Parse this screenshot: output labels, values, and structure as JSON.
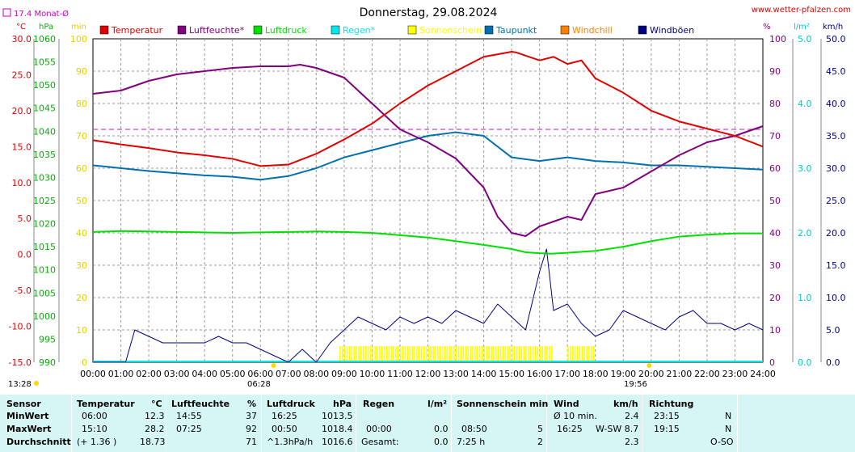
{
  "title": "Donnerstag, 29.08.2024",
  "site": "www.wetter-pfalzen.com",
  "month_avg": "17.4 Monat-Ø",
  "unit_labels": {
    "celsius": "°C",
    "hpa": "hPa",
    "min": "min",
    "percent": "%",
    "rain": "l/m²",
    "speed": "km/h"
  },
  "sun_times": {
    "rise": "06:28",
    "set": "19:56",
    "moonset": "13:28"
  },
  "legend": [
    {
      "label": "Temperatur",
      "color": "#e00000"
    },
    {
      "label": "Luftfeuchte*",
      "color": "#800080"
    },
    {
      "label": "Luftdruck",
      "color": "#00e000"
    },
    {
      "label": "Regen*",
      "color": "#00e8e8"
    },
    {
      "label": "Sonnenschein",
      "color": "#ffff00"
    },
    {
      "label": "Taupunkt",
      "color": "#0070b0"
    },
    {
      "label": "Windchill",
      "color": "#ff8000"
    },
    {
      "label": "Windböen",
      "color": "#000080"
    }
  ],
  "axes": {
    "temp": {
      "labels": [
        "30.0",
        "25.0",
        "20.0",
        "15.0",
        "10.0",
        "5.0",
        "0.0",
        "-5.0",
        "-10.0",
        "-15.0"
      ],
      "color": "#e00000"
    },
    "pressure": {
      "labels": [
        "1060",
        "1055",
        "1050",
        "1045",
        "1040",
        "1035",
        "1030",
        "1025",
        "1020",
        "1015",
        "1010",
        "1005",
        "1000",
        "995",
        "990"
      ],
      "color": "#00b000"
    },
    "minutes": {
      "labels": [
        "100",
        "90",
        "80",
        "70",
        "60",
        "50",
        "40",
        "30",
        "20",
        "10",
        "0"
      ],
      "color": "#e0d000"
    },
    "percent": {
      "labels": [
        "100",
        "90",
        "80",
        "70",
        "60",
        "50",
        "40",
        "30",
        "20",
        "10",
        "0"
      ],
      "color": "#800080"
    },
    "rain": {
      "labels": [
        "5.0",
        "4.0",
        "3.0",
        "2.0",
        "1.0",
        "0.0"
      ],
      "color": "#00c8c8"
    },
    "wind": {
      "labels": [
        "50.0",
        "45.0",
        "40.0",
        "35.0",
        "30.0",
        "25.0",
        "20.0",
        "15.0",
        "10.0",
        "5.0",
        "0.0"
      ],
      "color": "#000080"
    },
    "x_labels": [
      "00:00",
      "01:00",
      "02:00",
      "03:00",
      "04:00",
      "05:00",
      "06:00",
      "07:00",
      "08:00",
      "09:00",
      "10:00",
      "11:00",
      "12:00",
      "13:00",
      "14:00",
      "15:00",
      "16:00",
      "17:00",
      "18:00",
      "19:00",
      "20:00",
      "21:00",
      "22:00",
      "23:00",
      "24:00"
    ]
  },
  "chart_data": {
    "type": "line",
    "title": "Donnerstag, 29.08.2024",
    "x_unit": "hour",
    "month_average_temperature": 17.4,
    "series": [
      {
        "name": "Temperatur",
        "unit": "°C",
        "x": [
          0,
          1,
          2,
          3,
          4,
          5,
          6,
          7,
          8,
          9,
          10,
          11,
          12,
          13,
          14,
          15,
          15.17,
          16,
          16.5,
          17,
          17.5,
          18,
          19,
          20,
          21,
          22,
          23,
          24
        ],
        "values": [
          15.9,
          15.3,
          14.8,
          14.2,
          13.8,
          13.3,
          12.3,
          12.5,
          14,
          16,
          18.2,
          21,
          23.5,
          25.5,
          27.5,
          28.2,
          28.1,
          27,
          27.5,
          26.5,
          27,
          24.5,
          22.5,
          20,
          18.5,
          17.5,
          16.5,
          15
        ]
      },
      {
        "name": "Luftfeuchte*",
        "unit": "%",
        "x": [
          0,
          1,
          2,
          3,
          4,
          5,
          6,
          7,
          7.42,
          8,
          9,
          10,
          11,
          12,
          13,
          14,
          14.5,
          15,
          15.5,
          16,
          17,
          17.5,
          18,
          19,
          20,
          21,
          22,
          23,
          24
        ],
        "values": [
          83,
          84,
          87,
          89,
          90,
          91,
          91.5,
          91.5,
          92,
          91,
          88,
          80,
          72,
          68,
          63,
          54,
          45,
          40,
          39,
          42,
          45,
          44,
          52,
          54,
          59,
          64,
          68,
          70,
          73
        ]
      },
      {
        "name": "Luftdruck",
        "unit": "hPa",
        "x": [
          0,
          1,
          2,
          3,
          4,
          5,
          6,
          7,
          8,
          9,
          10,
          11,
          12,
          13,
          14,
          15,
          15.5,
          16,
          16.42,
          17,
          18,
          19,
          20,
          21,
          22,
          23,
          24
        ],
        "values": [
          1018.2,
          1018.4,
          1018.3,
          1018.2,
          1018.1,
          1018.0,
          1018.1,
          1018.2,
          1018.3,
          1018.2,
          1018.0,
          1017.5,
          1017.0,
          1016.2,
          1015.4,
          1014.5,
          1013.8,
          1013.6,
          1013.5,
          1013.7,
          1014.1,
          1015.0,
          1016.2,
          1017.2,
          1017.6,
          1017.9,
          1017.9
        ]
      },
      {
        "name": "Taupunkt",
        "unit": "°C",
        "x": [
          0,
          1,
          2,
          3,
          4,
          5,
          6,
          7,
          8,
          9,
          10,
          11,
          12,
          13,
          14,
          15,
          16,
          17,
          18,
          19,
          20,
          21,
          22,
          23,
          24
        ],
        "values": [
          12.4,
          12.0,
          11.6,
          11.3,
          11.0,
          10.8,
          10.4,
          10.9,
          12.0,
          13.5,
          14.5,
          15.5,
          16.5,
          17,
          16.5,
          13.5,
          13,
          13.5,
          13,
          12.8,
          12.4,
          12.4,
          12.2,
          12.0,
          11.8
        ]
      },
      {
        "name": "Windböen",
        "unit": "km/h",
        "x": [
          0,
          1,
          1.17,
          1.5,
          2,
          2.5,
          3,
          4,
          4.5,
          5,
          5.5,
          6,
          7,
          7.5,
          8,
          8.5,
          9,
          9.5,
          10,
          10.5,
          11,
          11.5,
          12,
          12.5,
          13,
          13.5,
          14,
          14.5,
          15,
          15.5,
          16,
          16.25,
          16.5,
          17,
          17.5,
          18,
          18.5,
          19,
          19.5,
          20,
          20.5,
          21,
          21.5,
          22,
          22.5,
          23,
          23.5,
          24
        ],
        "values": [
          0,
          0,
          0,
          5,
          4,
          3,
          3,
          3,
          4,
          3,
          3,
          2,
          0,
          2,
          0,
          3,
          5,
          7,
          6,
          5,
          7,
          6,
          7,
          6,
          8,
          7,
          6,
          9,
          7,
          5,
          14,
          17.5,
          8,
          9,
          6,
          4,
          5,
          8,
          7,
          6,
          5,
          7,
          8,
          6,
          6,
          5,
          6,
          5
        ]
      },
      {
        "name": "Sonnenschein",
        "unit": "min",
        "x": [
          8.83,
          9,
          10,
          11,
          12,
          13,
          14,
          15.33,
          16.5,
          17,
          17.5,
          18
        ],
        "values": [
          5,
          5,
          5,
          5,
          5,
          5,
          5,
          5,
          0,
          5,
          5,
          0
        ]
      },
      {
        "name": "Regen*",
        "unit": "l/m²",
        "x": [
          0,
          24
        ],
        "values": [
          0,
          0
        ]
      }
    ],
    "axes": {
      "temp_range": [
        -15,
        30
      ],
      "pressure_range": [
        990,
        1060
      ],
      "minutes_range": [
        0,
        100
      ],
      "percent_range": [
        0,
        100
      ],
      "rain_range": [
        0,
        5
      ],
      "wind_range": [
        0,
        50
      ],
      "x_range": [
        0,
        24
      ]
    },
    "grid": true
  },
  "stats": {
    "headers": {
      "sensor": "Sensor",
      "temperatur": "Temperatur",
      "temp_unit": "°C",
      "luftfeuchte": "Luftfeuchte",
      "hum_unit": "%",
      "luftdruck": "Luftdruck",
      "press_unit": "hPa",
      "regen": "Regen",
      "rain_unit": "l/m²",
      "sonne": "Sonnenschein min",
      "wind": "Wind",
      "wind_unit": "km/h",
      "richtung": "Richtung"
    },
    "rows": [
      {
        "label": "MinWert",
        "t_time": "06:00",
        "t_val": "12.3",
        "h_time": "14:55",
        "h_val": "37",
        "p_time": "16:25",
        "p_val": "1013.5",
        "r_time": "",
        "r_val": "",
        "s_time": "",
        "s_val": "",
        "w_time": "Ø 10 min.",
        "w_val": "2.4",
        "d_time": "23:15",
        "d_val": "N"
      },
      {
        "label": "MaxWert",
        "t_time": "15:10",
        "t_val": "28.2",
        "h_time": "07:25",
        "h_val": "92",
        "p_time": "00:50",
        "p_val": "1018.4",
        "r_time": "00:00",
        "r_val": "0.0",
        "s_time": "08:50",
        "s_val": "5",
        "w_time": "16:25",
        "w_val": "W-SW 8.7",
        "d_time": "19:15",
        "d_val": "N"
      },
      {
        "label": "Durchschnitt",
        "t_time": "(+ 1.36 )",
        "t_val": "18.73",
        "h_time": "",
        "h_val": "71",
        "p_time": "^1.3hPa/h",
        "p_val": "1016.6",
        "r_time": "Gesamt:",
        "r_val": "0.0",
        "s_time": "7:25 h",
        "s_val": "2",
        "w_time": "",
        "w_val": "2.3",
        "d_time": "",
        "d_val": "O-SO"
      }
    ]
  }
}
